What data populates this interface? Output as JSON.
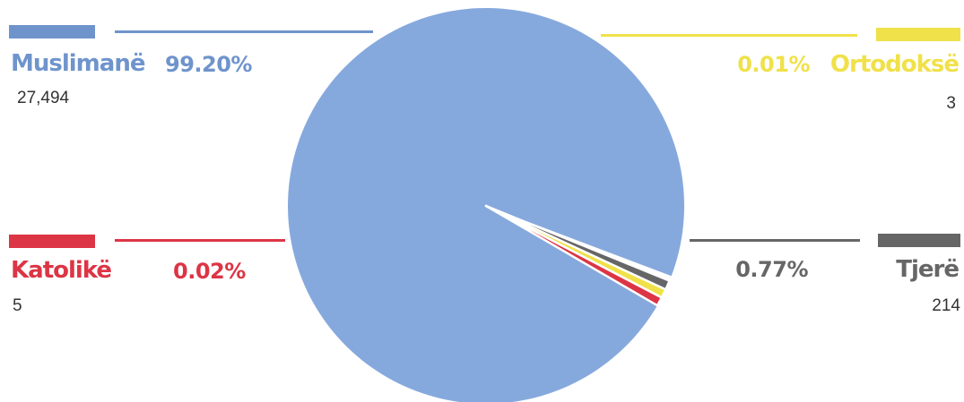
{
  "chart_data": {
    "type": "pie",
    "title": "",
    "slices": [
      {
        "label": "Muslimanë",
        "percent_label": "99.20%",
        "count": "27,494",
        "value": 27494,
        "color": "#86a9dd",
        "legend_color": "#6f94cc",
        "text_color": "#6f94cc"
      },
      {
        "label": "Katolikë",
        "percent_label": "0.02%",
        "count": "5",
        "value": 5,
        "color": "#dc3545",
        "legend_color": "#dc3545",
        "text_color": "#dc3545"
      },
      {
        "label": "Ortodoksë",
        "percent_label": "0.01%",
        "count": "3",
        "value": 3,
        "color": "#f0e14a",
        "legend_color": "#f0e14a",
        "text_color": "#f0e14a"
      },
      {
        "label": "Tjerë",
        "percent_label": "0.77%",
        "count": "214",
        "value": 214,
        "color": "#666666",
        "legend_color": "#666666",
        "text_color": "#666666"
      }
    ]
  }
}
